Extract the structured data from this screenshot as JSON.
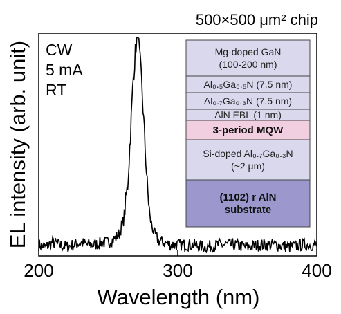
{
  "chart_data": {
    "type": "line",
    "title": "500×500 μm² chip",
    "xlabel": "Wavelength (nm)",
    "ylabel": "EL intensity (arb. unit)",
    "xlim": [
      200,
      400
    ],
    "ylim": [
      0,
      1.0
    ],
    "x_ticks": [
      "200",
      "300",
      "400"
    ],
    "grid": false,
    "series": [
      {
        "peak_wavelength": 271,
        "peak_intensity": 0.98,
        "fwhm": 10,
        "noise_floor": 0.05,
        "x": [
          200,
          205,
          210,
          215,
          220,
          225,
          230,
          235,
          240,
          245,
          250,
          255,
          258,
          261,
          264,
          266,
          268,
          270,
          271,
          272,
          274,
          276,
          278,
          280,
          283,
          286,
          290,
          295,
          300,
          310,
          320,
          330,
          340,
          350,
          360,
          370,
          380,
          390,
          400
        ],
        "y": [
          0.05,
          0.04,
          0.06,
          0.05,
          0.04,
          0.05,
          0.06,
          0.05,
          0.05,
          0.06,
          0.06,
          0.08,
          0.1,
          0.16,
          0.32,
          0.55,
          0.8,
          0.95,
          0.98,
          0.94,
          0.78,
          0.55,
          0.32,
          0.17,
          0.1,
          0.07,
          0.06,
          0.05,
          0.05,
          0.05,
          0.04,
          0.05,
          0.05,
          0.04,
          0.05,
          0.05,
          0.04,
          0.05,
          0.05
        ]
      }
    ],
    "annotations": [
      "CW",
      "5 mA",
      "RT"
    ],
    "structure_layers": [
      {
        "text": "Mg-doped GaN",
        "text2": "(100-200 nm)",
        "color": "#d9d8ec",
        "bold": false
      },
      {
        "text": "Al₀.₅Ga₀.₅N (7.5 nm)",
        "text2": "",
        "color": "#d9d8ec",
        "bold": false
      },
      {
        "text": "Al₀.₇Ga₀.₃N (7.5 nm)",
        "text2": "",
        "color": "#d9d8ec",
        "bold": false
      },
      {
        "text": "AlN EBL (1 nm)",
        "text2": "",
        "color": "#d9d8ec",
        "bold": false
      },
      {
        "text": "3-period MQW",
        "text2": "",
        "color": "#f2cfe0",
        "bold": true
      },
      {
        "text": "Si-doped Al₀.₇Ga₀.₃N",
        "text2": "(~2 μm)",
        "color": "#d9d8ec",
        "bold": false
      },
      {
        "text": "(1102) r AlN",
        "text2": "substrate",
        "color": "#9c98ce",
        "bold": true
      }
    ]
  }
}
